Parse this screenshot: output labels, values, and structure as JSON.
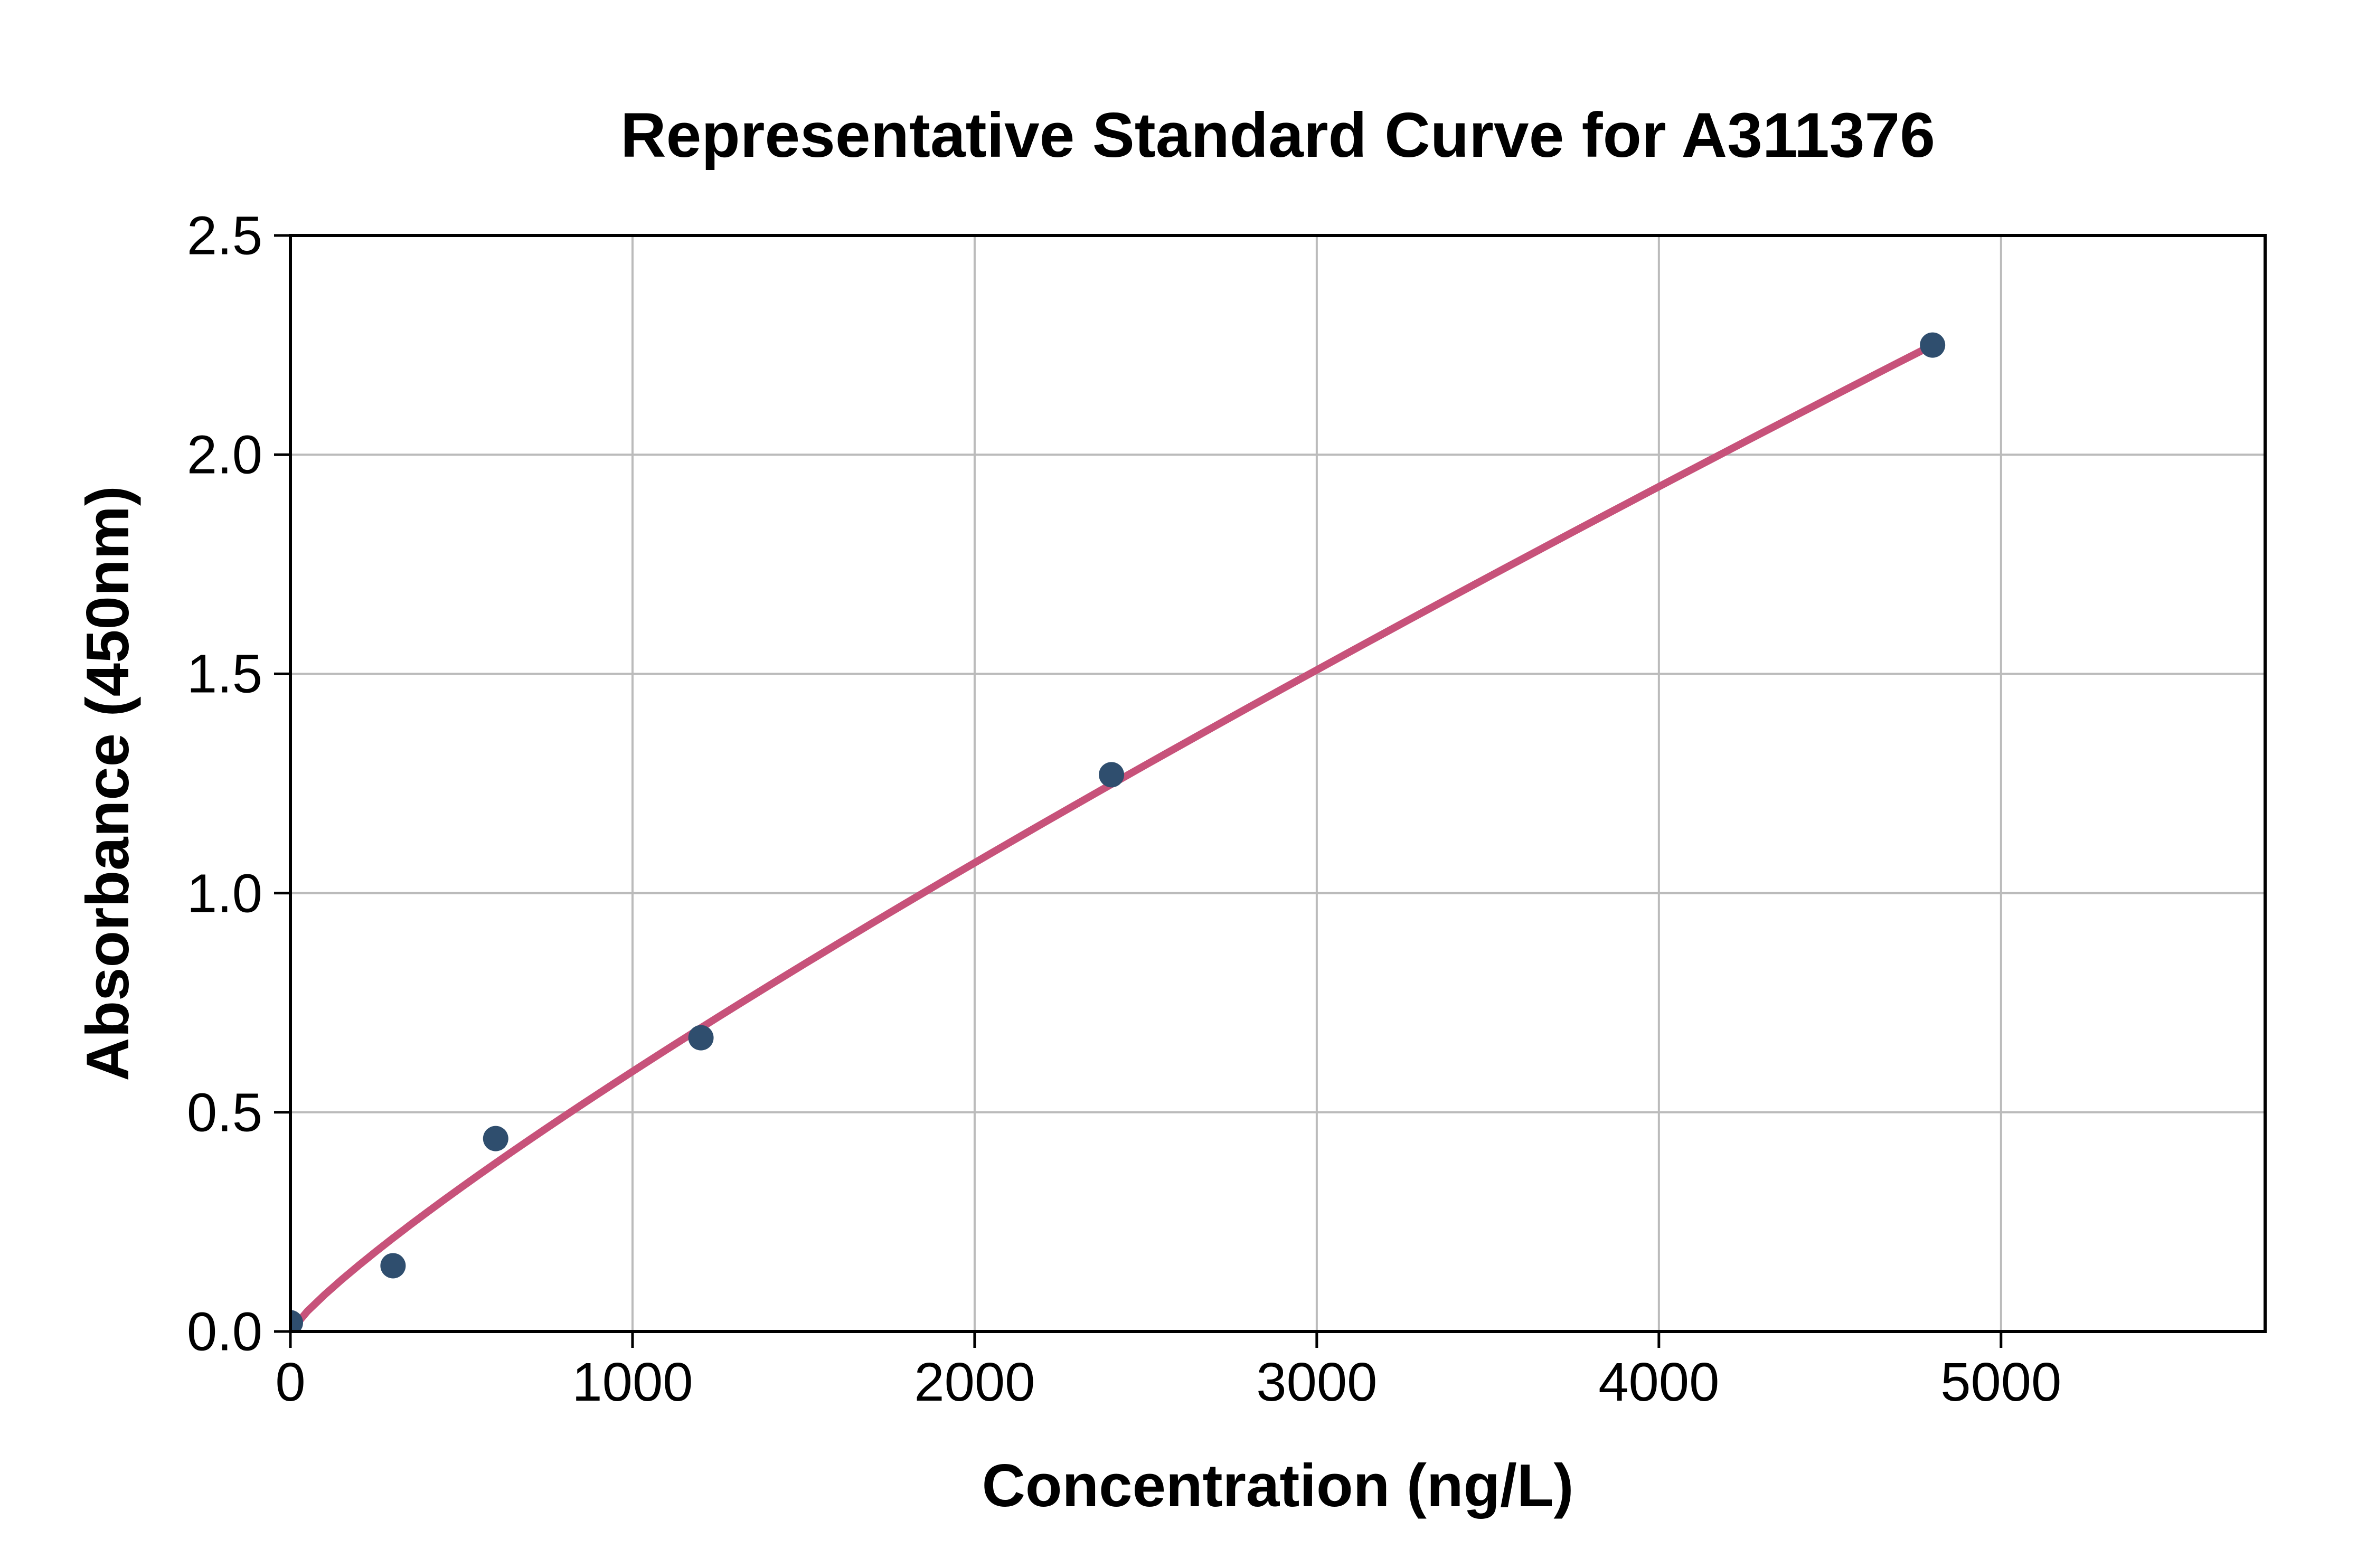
{
  "chart_data": {
    "type": "scatter",
    "title": "Representative Standard Curve for A311376",
    "xlabel": "Concentration (ng/L)",
    "ylabel": "Absorbance (450nm)",
    "x": [
      0,
      300,
      600,
      1200,
      2400,
      4800
    ],
    "y": [
      0.02,
      0.15,
      0.44,
      0.67,
      1.27,
      2.25
    ],
    "fit_curve": {
      "type": "power",
      "description": "y = 2.25 * (x/4800)^0.85",
      "amplitude": 2.25,
      "x_ref": 4800,
      "exponent": 0.85,
      "x_start": 0,
      "x_end": 4800
    },
    "xlim": [
      0,
      5772
    ],
    "ylim": [
      0,
      2.5
    ],
    "xticks": [
      0,
      1000,
      2000,
      3000,
      4000,
      5000
    ],
    "yticks": [
      0,
      0.5,
      1,
      1.5,
      2,
      2.5
    ],
    "grid": true,
    "legend": false,
    "colors": {
      "curve": "#C7527A",
      "points": "#2F4E6E",
      "grid": "#BBBBBB",
      "axis": "#000000",
      "text": "#000000",
      "background": "#FFFFFF"
    }
  }
}
